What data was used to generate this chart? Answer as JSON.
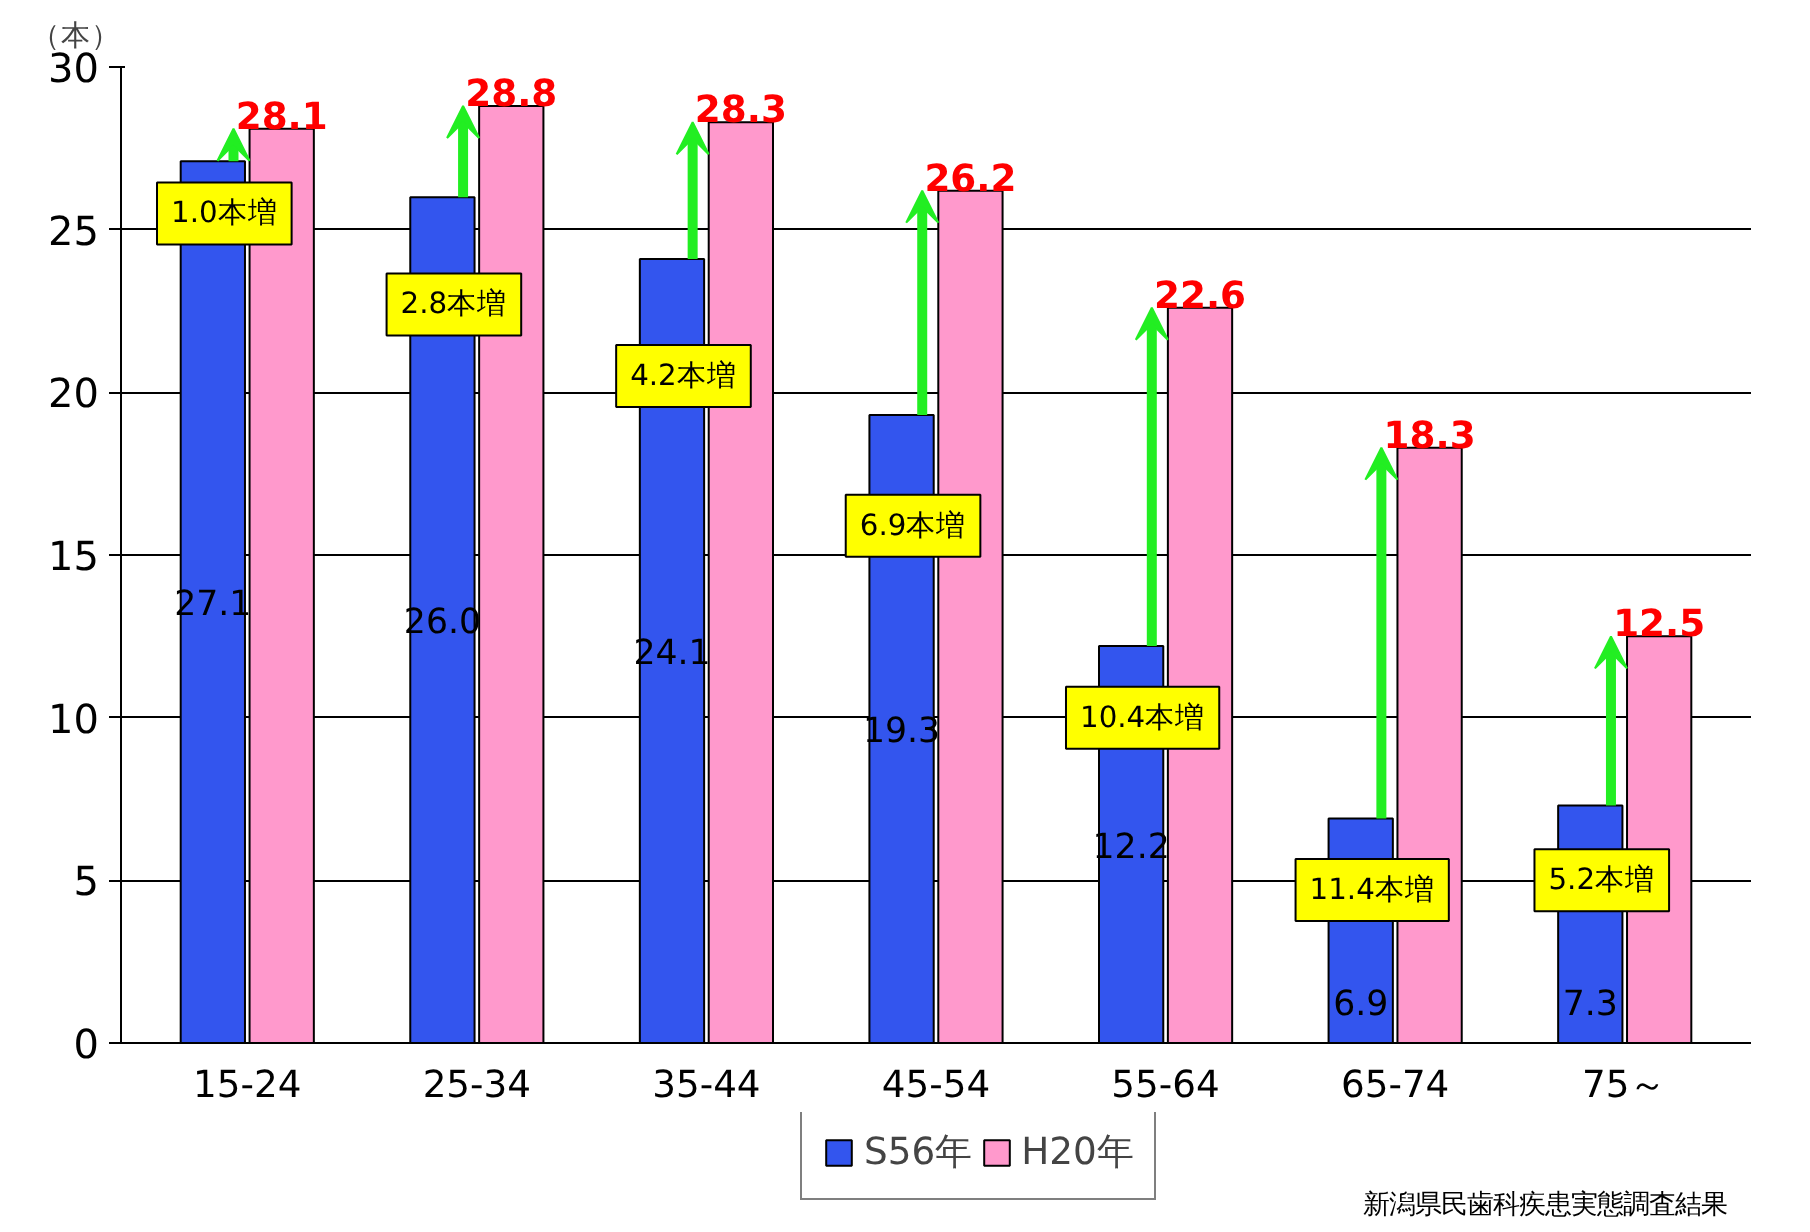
{
  "chart_data": {
    "type": "bar",
    "ylabel": "（本）",
    "categories": [
      "15-24",
      "25-34",
      "35-44",
      "45-54",
      "55-64",
      "65-74",
      "75～"
    ],
    "series": [
      {
        "name": "S56年",
        "color": "#3355ee",
        "values": [
          27.1,
          26.0,
          24.1,
          19.3,
          12.2,
          6.9,
          7.3
        ],
        "value_labels": [
          "27.1",
          "26.0",
          "24.1",
          "19.3",
          "12.2",
          "6.9",
          "7.3"
        ]
      },
      {
        "name": "H20年",
        "color": "#ff99cc",
        "values": [
          28.1,
          28.8,
          28.3,
          26.2,
          22.6,
          18.3,
          12.5
        ],
        "value_labels": [
          "28.1",
          "28.8",
          "28.3",
          "26.2",
          "22.6",
          "18.3",
          "12.5"
        ]
      }
    ],
    "ylim": [
      0,
      30
    ],
    "yticks": [
      0,
      5,
      10,
      15,
      20,
      25,
      30
    ],
    "grid": "y",
    "legend": "bottom",
    "annotations": [
      {
        "text": "1.0本増",
        "x": "15-24",
        "y": 25.5
      },
      {
        "text": "2.8本増",
        "x": "25-34",
        "y": 22.7
      },
      {
        "text": "4.2本増",
        "x": "35-44",
        "y": 20.5
      },
      {
        "text": "6.9本増",
        "x": "45-54",
        "y": 15.9
      },
      {
        "text": "10.4本増",
        "x": "55-64",
        "y": 10.0
      },
      {
        "text": "11.4本増",
        "x": "65-74",
        "y": 4.7
      },
      {
        "text": "5.2本増",
        "x": "75～",
        "y": 5.0
      },
      "新潟県民歯科疾患実態調査結果"
    ]
  }
}
